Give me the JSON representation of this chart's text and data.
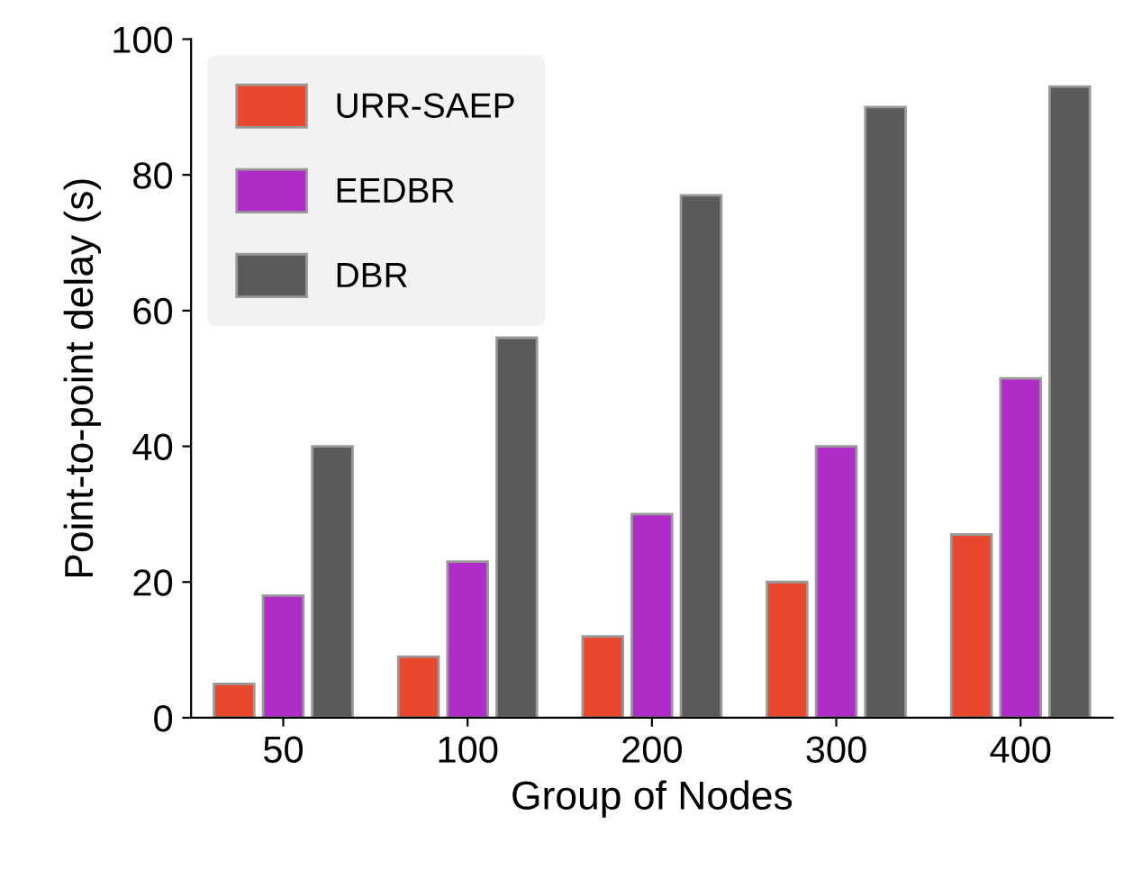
{
  "chart_data": {
    "type": "bar",
    "xlabel": "Group of Nodes",
    "ylabel": "Point-to-point delay (s)",
    "categories": [
      "50",
      "100",
      "200",
      "300",
      "400"
    ],
    "series": [
      {
        "name": "URR-SAEP",
        "color": "#e8482e",
        "values": [
          5,
          9,
          12,
          20,
          27
        ]
      },
      {
        "name": "EEDBR",
        "color": "#b02cc8",
        "values": [
          18,
          23,
          30,
          40,
          50
        ]
      },
      {
        "name": "DBR",
        "color": "#5a5a5a",
        "values": [
          40,
          56,
          77,
          90,
          93
        ]
      }
    ],
    "ylim": [
      0,
      100
    ],
    "yticks": [
      0,
      20,
      40,
      60,
      80,
      100
    ],
    "grid": false,
    "legend": "top left"
  }
}
